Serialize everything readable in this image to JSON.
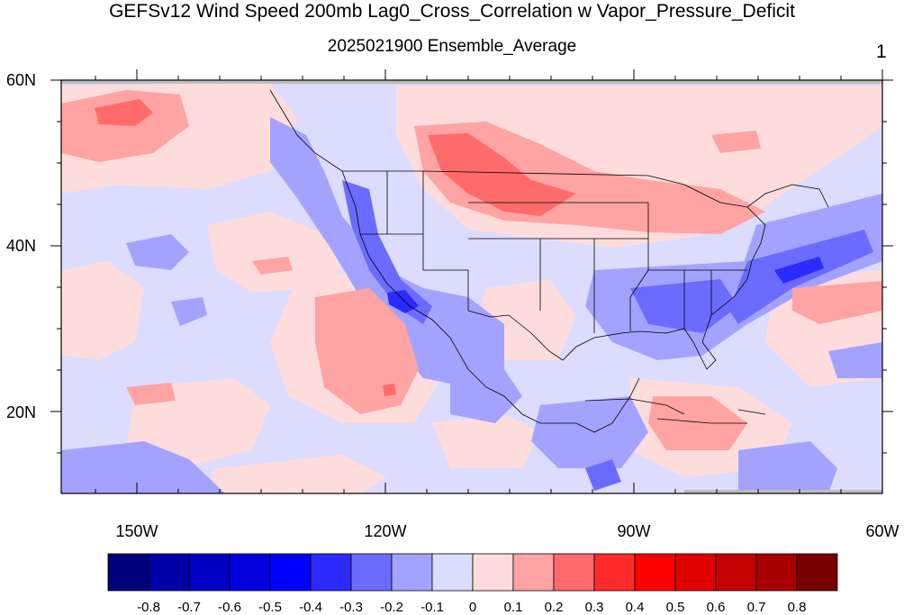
{
  "title": "GEFSv12 Wind Speed 200mb Lag0_Cross_Correlation w Vapor_Pressure_Deficit",
  "subtitle": "2025021900 Ensemble_Average",
  "panel_number": "1",
  "lat_labels": [
    "60N",
    "40N",
    "20N"
  ],
  "lon_labels": [
    "150W",
    "120W",
    "90W",
    "60W"
  ],
  "colorbar": {
    "labels": [
      "-0.8",
      "-0.7",
      "-0.6",
      "-0.5",
      "-0.4",
      "-0.3",
      "-0.2",
      "-0.1",
      "0",
      "0.1",
      "0.2",
      "0.3",
      "0.4",
      "0.5",
      "0.6",
      "0.7",
      "0.8"
    ],
    "colors": [
      "#00007a",
      "#0000a8",
      "#0000c4",
      "#0000e0",
      "#0000ff",
      "#2b2bff",
      "#6b6bff",
      "#a3a3ff",
      "#dcdcff",
      "#ffdcdc",
      "#ffa3a3",
      "#ff6b6b",
      "#ff2b2b",
      "#ff0000",
      "#e00000",
      "#c40000",
      "#a80000",
      "#7a0000"
    ]
  },
  "colors": {
    "neutral_blue": "#dcdcff",
    "neutral_red": "#ffdcdc",
    "land_missing": "#bdbdbd"
  }
}
